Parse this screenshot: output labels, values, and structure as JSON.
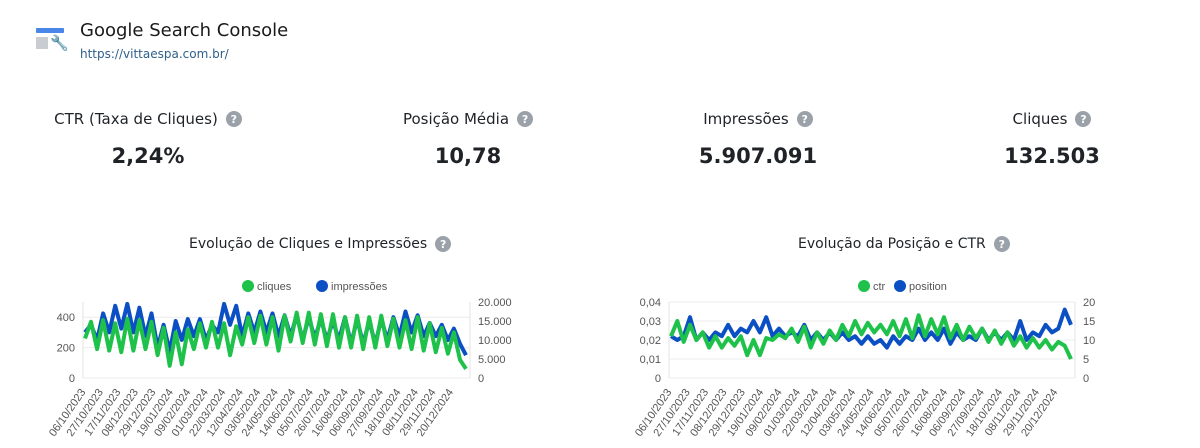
{
  "header": {
    "title": "Google Search Console",
    "url": "https://vittaespa.com.br/"
  },
  "kpis": [
    {
      "label": "CTR (Taxa de Cliques)",
      "value": "2,24%"
    },
    {
      "label": "Posição Média",
      "value": "10,78"
    },
    {
      "label": "Impressões",
      "value": "5.907.091"
    },
    {
      "label": "Cliques",
      "value": "132.503"
    }
  ],
  "help_glyph": "?",
  "colors": {
    "green": "#1ec24a",
    "blue": "#0b4fc4"
  },
  "chart_data": [
    {
      "type": "line",
      "title": "Evolução de Cliques e Impressões",
      "x_labels": [
        "06/10/2023",
        "27/10/2023",
        "17/11/2023",
        "08/12/2023",
        "29/12/2023",
        "19/01/2024",
        "09/02/2024",
        "01/03/2024",
        "22/03/2024",
        "12/04/2024",
        "03/05/2024",
        "24/05/2024",
        "14/06/2024",
        "05/07/2024",
        "26/07/2024",
        "16/08/2024",
        "06/09/2024",
        "27/09/2024",
        "18/10/2024",
        "08/11/2024",
        "29/11/2024",
        "20/12/2024"
      ],
      "y_left": {
        "range": [
          0,
          500
        ],
        "ticks": [
          "0",
          "200",
          "400"
        ],
        "tick_values": [
          0,
          200,
          400
        ]
      },
      "y_right": {
        "range": [
          0,
          20000
        ],
        "ticks": [
          "0",
          "5.000",
          "10.000",
          "15.000",
          "20.000"
        ],
        "tick_values": [
          0,
          5000,
          10000,
          15000,
          20000
        ]
      },
      "series": [
        {
          "name": "impressões",
          "axis": "right",
          "color": "#0b4fc4",
          "values": [
            12000,
            14000,
            10000,
            17000,
            12000,
            19000,
            13000,
            19500,
            12000,
            18500,
            11000,
            17000,
            8000,
            14000,
            7000,
            15000,
            10000,
            15500,
            11000,
            15500,
            10000,
            14000,
            12000,
            19500,
            14000,
            19000,
            11000,
            17000,
            12000,
            17500,
            12000,
            17000,
            11000,
            16500,
            11000,
            16500,
            10000,
            16000,
            10500,
            15500,
            10000,
            15000,
            10000,
            16000,
            9000,
            15500,
            9000,
            15000,
            9000,
            15500,
            10000,
            16000,
            11000,
            17500,
            12000,
            16500,
            11000,
            14500,
            11000,
            14000,
            10000,
            13000,
            9000,
            6000
          ]
        },
        {
          "name": "cliques",
          "axis": "left",
          "color": "#1ec24a",
          "values": [
            260,
            370,
            190,
            380,
            180,
            360,
            170,
            390,
            180,
            380,
            190,
            370,
            150,
            330,
            80,
            300,
            90,
            320,
            190,
            360,
            200,
            370,
            200,
            360,
            150,
            340,
            220,
            400,
            230,
            410,
            220,
            400,
            180,
            410,
            240,
            430,
            230,
            430,
            220,
            420,
            210,
            420,
            200,
            400,
            200,
            410,
            190,
            400,
            200,
            410,
            210,
            390,
            200,
            380,
            190,
            400,
            180,
            360,
            170,
            330,
            160,
            300,
            120,
            60
          ]
        }
      ],
      "legend": [
        "cliques",
        "impressões"
      ]
    },
    {
      "type": "line",
      "title": "Evolução da Posição e CTR",
      "x_labels": [
        "06/10/2023",
        "27/10/2023",
        "17/11/2023",
        "08/12/2023",
        "29/12/2023",
        "19/01/2024",
        "09/02/2024",
        "01/03/2024",
        "22/03/2024",
        "12/04/2024",
        "03/05/2024",
        "24/05/2024",
        "14/06/2024",
        "05/07/2024",
        "26/07/2024",
        "16/08/2024",
        "06/09/2024",
        "27/09/2024",
        "18/10/2024",
        "08/11/2024",
        "29/11/2024",
        "20/12/2024"
      ],
      "y_left": {
        "range": [
          0,
          0.04
        ],
        "ticks": [
          "0",
          "0,01",
          "0,02",
          "0,03",
          "0,04"
        ],
        "tick_values": [
          0,
          0.01,
          0.02,
          0.03,
          0.04
        ]
      },
      "y_right": {
        "range": [
          0,
          20
        ],
        "ticks": [
          "0",
          "5",
          "10",
          "15",
          "20"
        ],
        "tick_values": [
          0,
          5,
          10,
          15,
          20
        ]
      },
      "series": [
        {
          "name": "position",
          "axis": "right",
          "color": "#0b4fc4",
          "values": [
            11,
            10,
            11,
            16,
            10,
            12,
            10,
            12,
            11,
            14,
            11,
            13,
            12,
            15,
            12,
            16,
            11,
            13,
            11,
            12,
            11,
            14,
            10,
            12,
            10,
            12,
            10,
            12,
            10,
            11,
            9,
            11,
            9,
            10,
            8,
            11,
            9,
            11,
            10,
            13,
            10,
            12,
            10,
            13,
            9,
            12,
            10,
            11,
            10,
            13,
            10,
            12,
            10,
            12,
            10,
            15,
            10,
            12,
            11,
            14,
            12,
            13,
            18,
            14
          ]
        },
        {
          "name": "ctr",
          "axis": "left",
          "color": "#1ec24a",
          "values": [
            0.022,
            0.03,
            0.019,
            0.028,
            0.02,
            0.024,
            0.016,
            0.022,
            0.016,
            0.021,
            0.017,
            0.022,
            0.012,
            0.02,
            0.012,
            0.021,
            0.02,
            0.023,
            0.021,
            0.026,
            0.019,
            0.027,
            0.016,
            0.024,
            0.018,
            0.025,
            0.02,
            0.028,
            0.022,
            0.03,
            0.023,
            0.029,
            0.024,
            0.028,
            0.023,
            0.03,
            0.022,
            0.031,
            0.021,
            0.033,
            0.022,
            0.031,
            0.023,
            0.032,
            0.021,
            0.028,
            0.02,
            0.027,
            0.021,
            0.026,
            0.019,
            0.025,
            0.018,
            0.024,
            0.017,
            0.022,
            0.016,
            0.021,
            0.016,
            0.02,
            0.015,
            0.019,
            0.017,
            0.01
          ]
        }
      ],
      "legend": [
        "ctr",
        "position"
      ]
    }
  ]
}
